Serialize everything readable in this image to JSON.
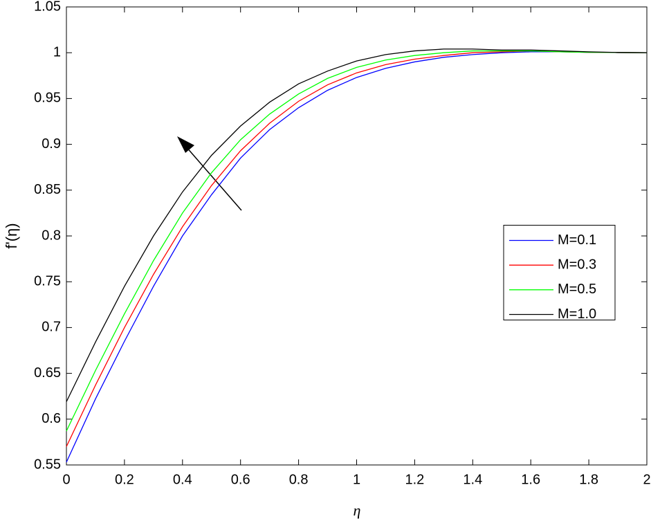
{
  "chart_data": {
    "type": "line",
    "x_label": "η",
    "y_label": "f'(η)",
    "x": [
      0,
      0.1,
      0.2,
      0.3,
      0.4,
      0.5,
      0.6,
      0.7,
      0.8,
      0.9,
      1,
      1.1,
      1.2,
      1.3,
      1.4,
      1.5,
      1.6,
      1.7,
      1.8,
      1.9,
      2
    ],
    "series": [
      {
        "name": "M=0.1",
        "color": "#0000ff",
        "values": [
          0.553,
          0.622,
          0.685,
          0.745,
          0.8,
          0.845,
          0.885,
          0.916,
          0.94,
          0.959,
          0.973,
          0.983,
          0.99,
          0.995,
          0.998,
          1.0,
          1.001,
          1.001,
          1.0005,
          1.0002,
          1.0
        ]
      },
      {
        "name": "M=0.3",
        "color": "#ff0000",
        "values": [
          0.57,
          0.637,
          0.7,
          0.758,
          0.81,
          0.855,
          0.893,
          0.923,
          0.947,
          0.965,
          0.978,
          0.987,
          0.993,
          0.997,
          1.0,
          1.001,
          1.002,
          1.001,
          1.0005,
          1.0002,
          1.0
        ]
      },
      {
        "name": "M=0.5",
        "color": "#00ff00",
        "values": [
          0.587,
          0.653,
          0.715,
          0.773,
          0.825,
          0.869,
          0.905,
          0.933,
          0.955,
          0.972,
          0.984,
          0.992,
          0.997,
          1.0,
          1.002,
          1.002,
          1.002,
          1.001,
          1.0005,
          1.0002,
          1.0
        ]
      },
      {
        "name": "M=1.0",
        "color": "#000000",
        "values": [
          0.619,
          0.684,
          0.745,
          0.8,
          0.848,
          0.888,
          0.92,
          0.946,
          0.966,
          0.98,
          0.991,
          0.998,
          1.002,
          1.004,
          1.004,
          1.003,
          1.003,
          1.002,
          1.001,
          1.0003,
          1.0
        ]
      }
    ],
    "xlim": [
      0,
      2
    ],
    "xticks": [
      0,
      0.2,
      0.4,
      0.6,
      0.8,
      1,
      1.2,
      1.4,
      1.6,
      1.8,
      2
    ],
    "ylim": [
      0.55,
      1.05
    ],
    "yticks": [
      0.55,
      0.6,
      0.65,
      0.7,
      0.75,
      0.8,
      0.85,
      0.9,
      0.95,
      1,
      1.05
    ],
    "grid": false,
    "legend_position": "east"
  }
}
